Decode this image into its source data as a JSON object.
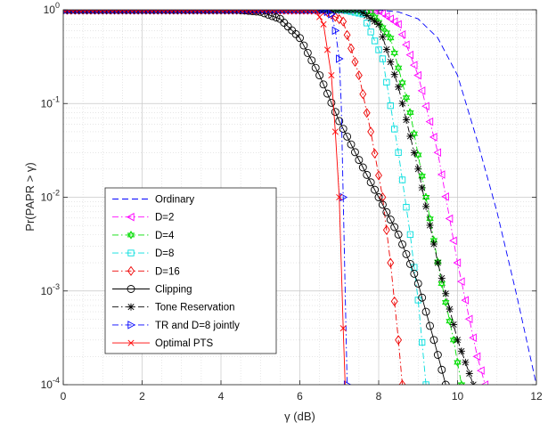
{
  "chart_data": {
    "type": "line",
    "title": "",
    "xlabel": "γ (dB)",
    "ylabel": "Pr(PAPR > γ)",
    "xlim": [
      0,
      12
    ],
    "ylim": [
      0.0001,
      1
    ],
    "yscale": "log",
    "grid": true,
    "legend_position": "bottom-left",
    "x_ticks": [
      "0",
      "2",
      "4",
      "6",
      "8",
      "10",
      "12"
    ],
    "y_ticks": [
      {
        "base": "10",
        "exp": "-4"
      },
      {
        "base": "10",
        "exp": "-3"
      },
      {
        "base": "10",
        "exp": "-2"
      },
      {
        "base": "10",
        "exp": "-1"
      },
      {
        "base": "10",
        "exp": "0"
      }
    ],
    "series": [
      {
        "name": "Ordinary",
        "color": "#0000ff",
        "dash": "dashed",
        "marker": "none",
        "x": [
          0,
          7.9,
          8.5,
          9,
          9.5,
          10,
          10.5,
          11,
          11.5,
          12
        ],
        "y": [
          1,
          1,
          0.95,
          0.8,
          0.5,
          0.2,
          0.04,
          0.007,
          0.0009,
          0.0001
        ]
      },
      {
        "name": "D=2",
        "color": "#ff00ff",
        "dash": "dashdot",
        "marker": "triangle-left",
        "x": [
          0,
          7.5,
          8,
          8.5,
          9,
          9.5,
          10,
          10.5,
          10.7
        ],
        "y": [
          1,
          1,
          0.98,
          0.7,
          0.2,
          0.03,
          0.002,
          0.0002,
          0.0001
        ]
      },
      {
        "name": "D=4",
        "color": "#00dd00",
        "dash": "dashdot",
        "marker": "hexagram",
        "x": [
          0,
          7.3,
          7.8,
          8.3,
          8.8,
          9.2,
          9.6,
          9.9,
          10.1
        ],
        "y": [
          1,
          1,
          0.95,
          0.5,
          0.08,
          0.01,
          0.0012,
          0.0003,
          0.0001
        ]
      },
      {
        "name": "D=8",
        "color": "#00dddd",
        "dash": "dashdot",
        "marker": "square",
        "x": [
          0,
          7.1,
          7.6,
          8.1,
          8.5,
          8.8,
          9.0,
          9.2
        ],
        "y": [
          1,
          1,
          0.9,
          0.3,
          0.03,
          0.004,
          0.0008,
          0.0001
        ]
      },
      {
        "name": "D=16",
        "color": "#ee0000",
        "dash": "dashdot",
        "marker": "diamond",
        "x": [
          0,
          6.6,
          7.1,
          7.5,
          7.8,
          8.1,
          8.3,
          8.5,
          8.6
        ],
        "y": [
          1,
          1,
          0.75,
          0.2,
          0.05,
          0.01,
          0.002,
          0.0003,
          0.0001
        ]
      },
      {
        "name": "Clipping",
        "color": "#000000",
        "dash": "solid",
        "marker": "circle",
        "x": [
          0,
          4.4,
          5,
          5.5,
          6,
          6.5,
          7,
          7.5,
          8,
          8.5,
          9,
          9.4,
          9.7
        ],
        "y": [
          1,
          1,
          0.95,
          0.8,
          0.5,
          0.2,
          0.065,
          0.025,
          0.01,
          0.004,
          0.0012,
          0.0003,
          0.0001
        ]
      },
      {
        "name": "Tone Reservation",
        "color": "#000000",
        "dash": "dashdot",
        "marker": "asterisk",
        "x": [
          0,
          7.5,
          8,
          8.5,
          9,
          9.5,
          10,
          10.4
        ],
        "y": [
          1,
          1,
          0.7,
          0.15,
          0.02,
          0.002,
          0.0003,
          0.0001
        ]
      },
      {
        "name": "TR and D=8 jointly",
        "color": "#0000ff",
        "dash": "dashdot",
        "marker": "triangle-right",
        "x": [
          0,
          6.6,
          6.8,
          6.9,
          7.0,
          7.05,
          7.1,
          7.15,
          7.2
        ],
        "y": [
          1,
          1,
          0.9,
          0.6,
          0.3,
          0.1,
          0.01,
          0.001,
          0.0001
        ]
      },
      {
        "name": "Optimal PTS",
        "color": "#ff0000",
        "dash": "solid",
        "marker": "x",
        "x": [
          0,
          6.4,
          6.6,
          6.8,
          6.9,
          7.0,
          7.05,
          7.1,
          7.15
        ],
        "y": [
          1,
          1,
          0.7,
          0.2,
          0.05,
          0.01,
          0.002,
          0.0004,
          0.0001
        ]
      }
    ]
  }
}
